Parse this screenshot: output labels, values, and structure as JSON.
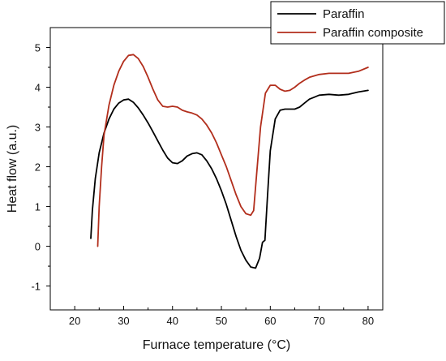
{
  "chart_data": {
    "type": "line",
    "title": "",
    "xlabel": "Furnace temperature (°C)",
    "ylabel": "Heat flow (a.u.)",
    "xlim": [
      15,
      83
    ],
    "ylim": [
      -1.6,
      5.5
    ],
    "x_ticks": [
      20,
      30,
      40,
      50,
      60,
      70,
      80
    ],
    "y_ticks": [
      -1,
      0,
      1,
      2,
      3,
      4,
      5
    ],
    "grid": false,
    "legend_position": "top-right",
    "series": [
      {
        "name": "Paraffin",
        "color": "#000000",
        "points": [
          [
            23.3,
            0.2
          ],
          [
            23.6,
            0.9
          ],
          [
            24.2,
            1.7
          ],
          [
            25.0,
            2.35
          ],
          [
            26.0,
            2.85
          ],
          [
            27.0,
            3.2
          ],
          [
            28.0,
            3.45
          ],
          [
            29.0,
            3.6
          ],
          [
            30.0,
            3.68
          ],
          [
            31.0,
            3.7
          ],
          [
            32.0,
            3.62
          ],
          [
            33.0,
            3.48
          ],
          [
            34.0,
            3.3
          ],
          [
            35.0,
            3.1
          ],
          [
            36.0,
            2.88
          ],
          [
            37.0,
            2.65
          ],
          [
            38.0,
            2.42
          ],
          [
            39.0,
            2.22
          ],
          [
            40.0,
            2.1
          ],
          [
            41.0,
            2.08
          ],
          [
            42.0,
            2.15
          ],
          [
            43.0,
            2.27
          ],
          [
            44.0,
            2.33
          ],
          [
            45.0,
            2.35
          ],
          [
            46.0,
            2.3
          ],
          [
            47.0,
            2.15
          ],
          [
            48.0,
            1.95
          ],
          [
            49.0,
            1.7
          ],
          [
            50.0,
            1.4
          ],
          [
            51.0,
            1.05
          ],
          [
            52.0,
            0.65
          ],
          [
            53.0,
            0.25
          ],
          [
            54.0,
            -0.1
          ],
          [
            55.0,
            -0.35
          ],
          [
            56.0,
            -0.52
          ],
          [
            57.0,
            -0.55
          ],
          [
            57.8,
            -0.3
          ],
          [
            58.4,
            0.1
          ],
          [
            58.9,
            0.15
          ],
          [
            59.4,
            1.2
          ],
          [
            60.0,
            2.4
          ],
          [
            61.0,
            3.2
          ],
          [
            62.0,
            3.42
          ],
          [
            63.0,
            3.45
          ],
          [
            64.0,
            3.45
          ],
          [
            65.0,
            3.45
          ],
          [
            66.0,
            3.5
          ],
          [
            67.0,
            3.6
          ],
          [
            68.0,
            3.7
          ],
          [
            69.0,
            3.75
          ],
          [
            70.0,
            3.8
          ],
          [
            72.0,
            3.82
          ],
          [
            74.0,
            3.8
          ],
          [
            76.0,
            3.82
          ],
          [
            78.0,
            3.88
          ],
          [
            80.0,
            3.92
          ]
        ]
      },
      {
        "name": "Paraffin composite",
        "color": "#b22e1c",
        "points": [
          [
            24.7,
            0.0
          ],
          [
            25.0,
            1.0
          ],
          [
            25.5,
            2.0
          ],
          [
            26.0,
            2.8
          ],
          [
            27.0,
            3.55
          ],
          [
            28.0,
            4.05
          ],
          [
            29.0,
            4.4
          ],
          [
            30.0,
            4.65
          ],
          [
            31.0,
            4.8
          ],
          [
            32.0,
            4.82
          ],
          [
            33.0,
            4.72
          ],
          [
            34.0,
            4.52
          ],
          [
            35.0,
            4.25
          ],
          [
            36.0,
            3.95
          ],
          [
            37.0,
            3.68
          ],
          [
            38.0,
            3.52
          ],
          [
            39.0,
            3.5
          ],
          [
            40.0,
            3.52
          ],
          [
            41.0,
            3.5
          ],
          [
            42.0,
            3.42
          ],
          [
            43.0,
            3.38
          ],
          [
            44.0,
            3.35
          ],
          [
            45.0,
            3.3
          ],
          [
            46.0,
            3.2
          ],
          [
            47.0,
            3.05
          ],
          [
            48.0,
            2.85
          ],
          [
            49.0,
            2.6
          ],
          [
            50.0,
            2.3
          ],
          [
            51.0,
            2.0
          ],
          [
            52.0,
            1.65
          ],
          [
            53.0,
            1.3
          ],
          [
            54.0,
            1.0
          ],
          [
            55.0,
            0.82
          ],
          [
            56.0,
            0.78
          ],
          [
            56.6,
            0.9
          ],
          [
            57.2,
            1.8
          ],
          [
            58.0,
            3.0
          ],
          [
            59.0,
            3.85
          ],
          [
            60.0,
            4.05
          ],
          [
            61.0,
            4.05
          ],
          [
            62.0,
            3.95
          ],
          [
            63.0,
            3.9
          ],
          [
            64.0,
            3.92
          ],
          [
            65.0,
            4.0
          ],
          [
            66.0,
            4.1
          ],
          [
            67.0,
            4.18
          ],
          [
            68.0,
            4.25
          ],
          [
            70.0,
            4.32
          ],
          [
            72.0,
            4.35
          ],
          [
            74.0,
            4.35
          ],
          [
            76.0,
            4.35
          ],
          [
            78.0,
            4.4
          ],
          [
            80.0,
            4.5
          ]
        ]
      }
    ]
  }
}
